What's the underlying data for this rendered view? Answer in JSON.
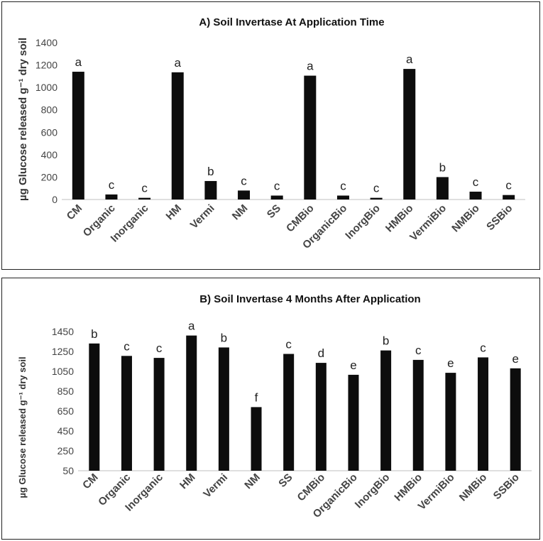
{
  "chart_data": [
    {
      "type": "bar",
      "title": "A) Soil Invertase At Application Time",
      "ylabel": "µg Glucose  released g⁻¹ dry soil",
      "ylim": [
        0,
        1400
      ],
      "yticks": [
        0,
        200,
        400,
        600,
        800,
        1000,
        1200,
        1400
      ],
      "grid": false,
      "categories": [
        "CM",
        "Organic",
        "Inorganic",
        "HM",
        "Vermi",
        "NM",
        "SS",
        "CMBio",
        "OrganicBio",
        "InorgBio",
        "HMBio",
        "VermiBio",
        "NMBio",
        "SSBio"
      ],
      "values": [
        1140,
        45,
        15,
        1135,
        165,
        80,
        35,
        1105,
        35,
        15,
        1165,
        200,
        70,
        40
      ],
      "labels": [
        "a",
        "c",
        "c",
        "a",
        "b",
        "c",
        "c",
        "a",
        "c",
        "c",
        "a",
        "b",
        "c",
        "c"
      ],
      "color": "#0d0d0d"
    },
    {
      "type": "bar",
      "title": "B) Soil Invertase 4 Months After Application",
      "ylabel": "µg Glucose released g⁻¹ dry soil",
      "ylim": [
        50,
        1450
      ],
      "yticks": [
        50,
        250,
        450,
        650,
        850,
        1050,
        1250,
        1450
      ],
      "grid": false,
      "categories": [
        "CM",
        "Organic",
        "Inorganic",
        "HM",
        "Vermi",
        "NM",
        "SS",
        "CMBio",
        "OrganicBio",
        "InorgBio",
        "HMBio",
        "VermiBio",
        "NMBio",
        "SSBio"
      ],
      "values": [
        1330,
        1205,
        1185,
        1410,
        1290,
        690,
        1225,
        1135,
        1015,
        1260,
        1165,
        1035,
        1190,
        1080
      ],
      "labels": [
        "b",
        "c",
        "c",
        "a",
        "b",
        "f",
        "c",
        "d",
        "e",
        "b",
        "c",
        "e",
        "c",
        "e"
      ],
      "color": "#0d0d0d"
    }
  ]
}
